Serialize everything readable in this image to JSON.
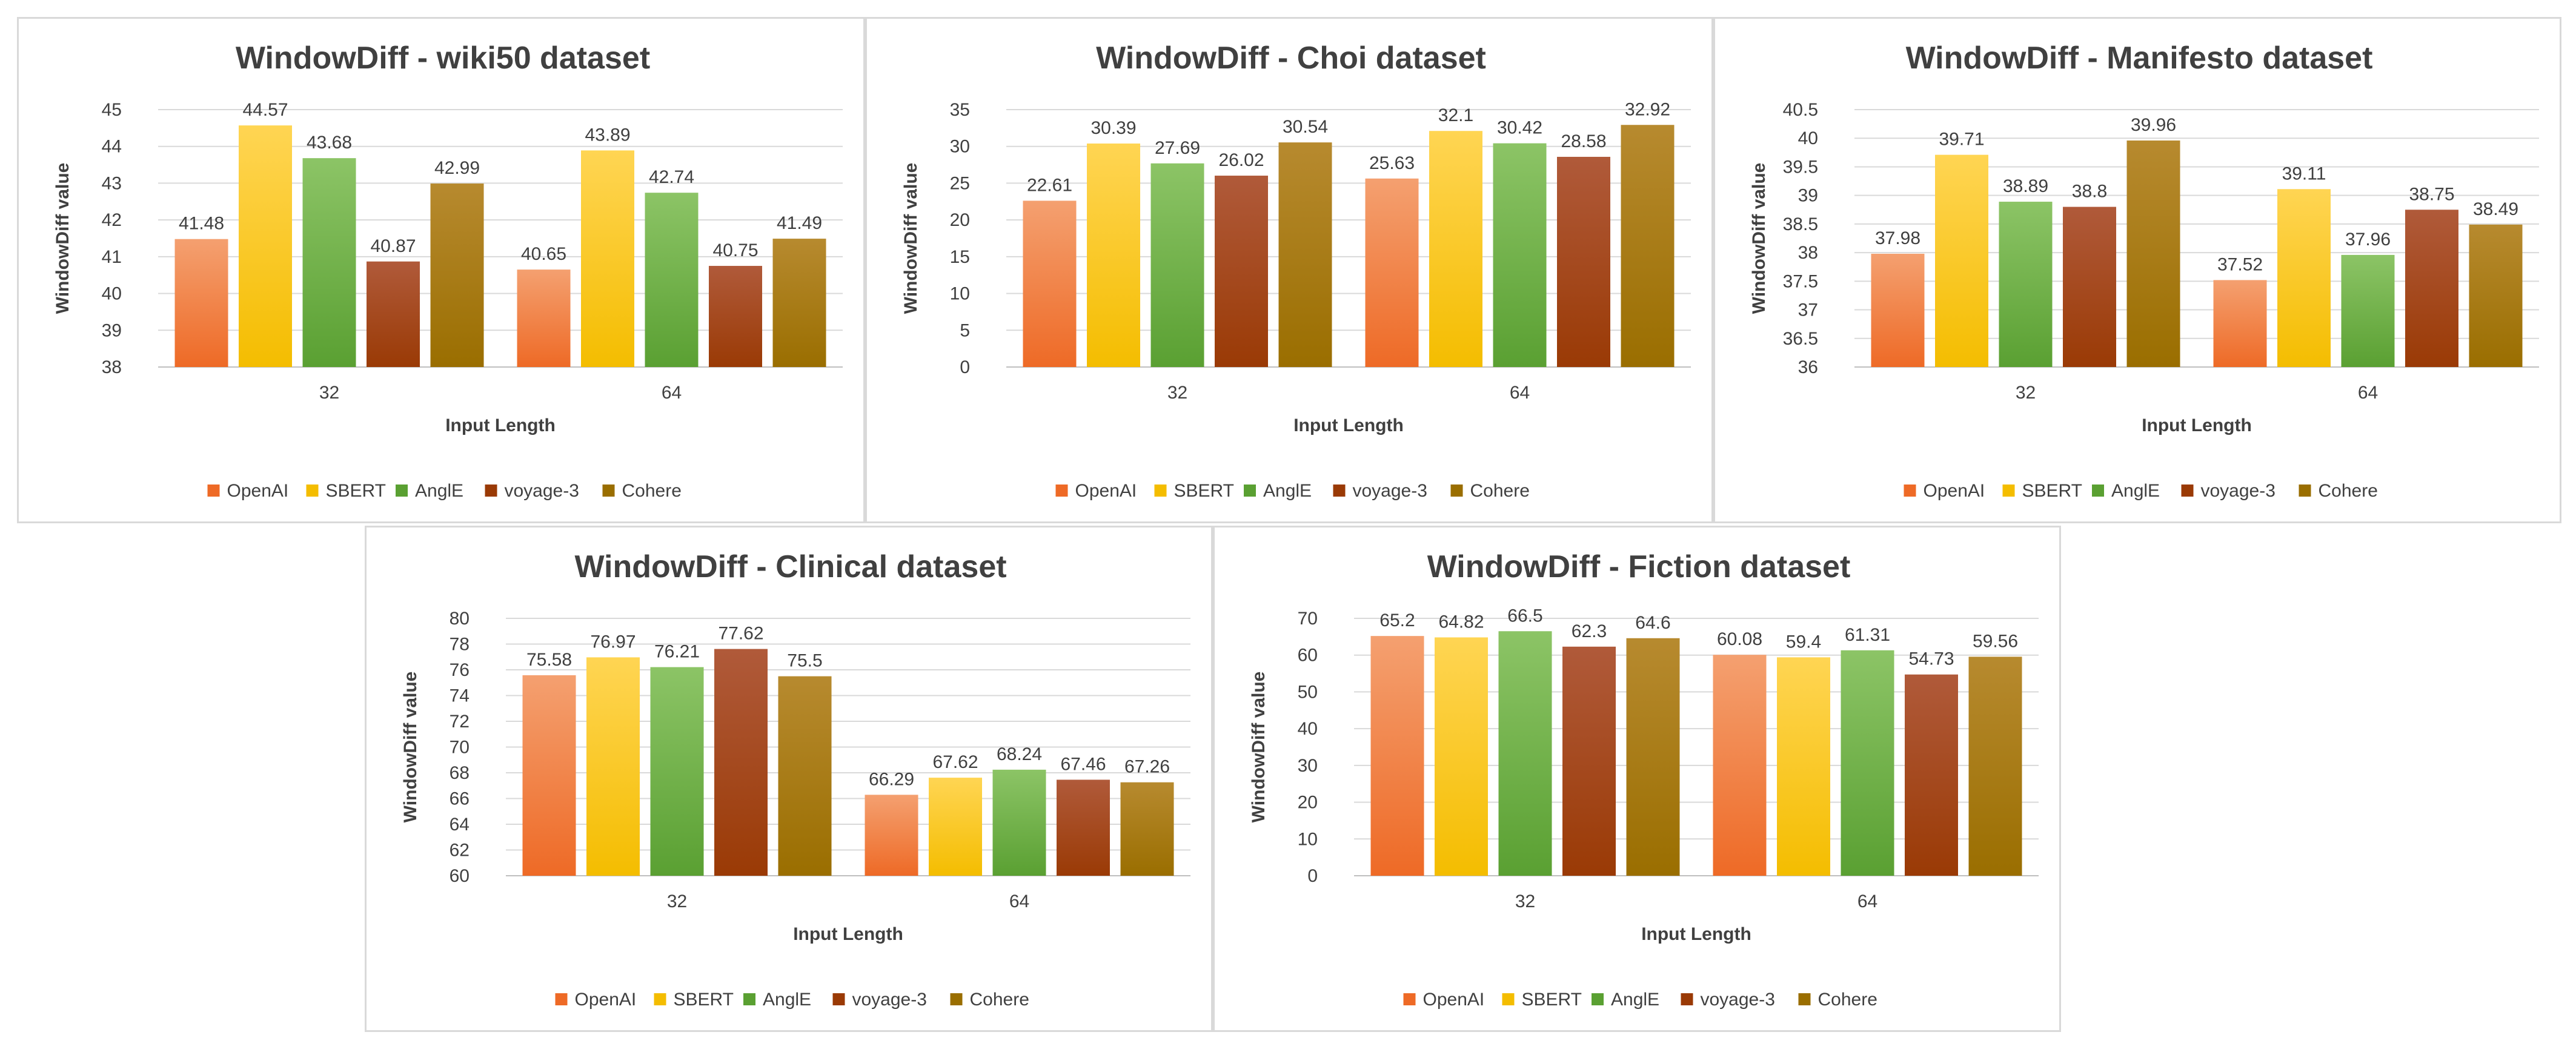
{
  "series_names": [
    "OpenAI",
    "SBERT",
    "AnglE",
    "voyage-3",
    "Cohere"
  ],
  "series_colors": [
    {
      "top": "#f4a070",
      "bottom": "#ee6a26"
    },
    {
      "top": "#ffd553",
      "bottom": "#f4bd00"
    },
    {
      "top": "#8cc466",
      "bottom": "#5aa032"
    },
    {
      "top": "#b05a3a",
      "bottom": "#9a3a05"
    },
    {
      "top": "#b78a2f",
      "bottom": "#9a6e00"
    }
  ],
  "chart_data": [
    {
      "type": "bar",
      "title": "WindowDiff - wiki50 dataset",
      "xlabel": "Input Length",
      "ylabel": "WindowDiff value",
      "categories": [
        "32",
        "64"
      ],
      "ylim": [
        38,
        45
      ],
      "yticks": [
        "38",
        "39",
        "40",
        "41",
        "42",
        "43",
        "44",
        "45"
      ],
      "series": [
        {
          "name": "OpenAI",
          "values": [
            41.48,
            40.65
          ]
        },
        {
          "name": "SBERT",
          "values": [
            44.57,
            43.89
          ]
        },
        {
          "name": "AnglE",
          "values": [
            43.68,
            42.74
          ]
        },
        {
          "name": "voyage-3",
          "values": [
            40.87,
            40.75
          ]
        },
        {
          "name": "Cohere",
          "values": [
            42.99,
            41.49
          ]
        }
      ],
      "legend": "bottom"
    },
    {
      "type": "bar",
      "title": "WindowDiff - Choi dataset",
      "xlabel": "Input Length",
      "ylabel": "WindowDiff value",
      "categories": [
        "32",
        "64"
      ],
      "ylim": [
        0,
        35
      ],
      "yticks": [
        "0",
        "5",
        "10",
        "15",
        "20",
        "25",
        "30",
        "35"
      ],
      "series": [
        {
          "name": "OpenAI",
          "values": [
            22.61,
            25.63
          ]
        },
        {
          "name": "SBERT",
          "values": [
            30.39,
            32.1
          ]
        },
        {
          "name": "AnglE",
          "values": [
            27.69,
            30.42
          ]
        },
        {
          "name": "voyage-3",
          "values": [
            26.02,
            28.58
          ]
        },
        {
          "name": "Cohere",
          "values": [
            30.54,
            32.92
          ]
        }
      ],
      "legend": "bottom"
    },
    {
      "type": "bar",
      "title": "WindowDiff - Manifesto dataset",
      "xlabel": "Input Length",
      "ylabel": "WindowDiff value",
      "categories": [
        "32",
        "64"
      ],
      "ylim": [
        36,
        40.5
      ],
      "yticks": [
        "36",
        "36.5",
        "37",
        "37.5",
        "38",
        "38.5",
        "39",
        "39.5",
        "40",
        "40.5"
      ],
      "series": [
        {
          "name": "OpenAI",
          "values": [
            37.98,
            37.52
          ]
        },
        {
          "name": "SBERT",
          "values": [
            39.71,
            39.11
          ]
        },
        {
          "name": "AnglE",
          "values": [
            38.89,
            37.96
          ]
        },
        {
          "name": "voyage-3",
          "values": [
            38.8,
            38.75
          ]
        },
        {
          "name": "Cohere",
          "values": [
            39.96,
            38.49
          ]
        }
      ],
      "legend": "bottom"
    },
    {
      "type": "bar",
      "title": "WindowDiff - Clinical dataset",
      "xlabel": "Input Length",
      "ylabel": "WindowDiff value",
      "categories": [
        "32",
        "64"
      ],
      "ylim": [
        60,
        80
      ],
      "yticks": [
        "60",
        "62",
        "64",
        "66",
        "68",
        "70",
        "72",
        "74",
        "76",
        "78",
        "80"
      ],
      "series": [
        {
          "name": "OpenAI",
          "values": [
            75.58,
            66.29
          ]
        },
        {
          "name": "SBERT",
          "values": [
            76.97,
            67.62
          ]
        },
        {
          "name": "AnglE",
          "values": [
            76.21,
            68.24
          ]
        },
        {
          "name": "voyage-3",
          "values": [
            77.62,
            67.46
          ]
        },
        {
          "name": "Cohere",
          "values": [
            75.5,
            67.26
          ]
        }
      ],
      "legend": "bottom"
    },
    {
      "type": "bar",
      "title": "WindowDiff - Fiction dataset",
      "xlabel": "Input Length",
      "ylabel": "WindowDiff value",
      "categories": [
        "32",
        "64"
      ],
      "ylim": [
        0,
        70
      ],
      "yticks": [
        "0",
        "10",
        "20",
        "30",
        "40",
        "50",
        "60",
        "70"
      ],
      "series": [
        {
          "name": "OpenAI",
          "values": [
            65.2,
            60.08
          ]
        },
        {
          "name": "SBERT",
          "values": [
            64.82,
            59.4
          ]
        },
        {
          "name": "AnglE",
          "values": [
            66.5,
            61.31
          ]
        },
        {
          "name": "voyage-3",
          "values": [
            62.3,
            54.73
          ]
        },
        {
          "name": "Cohere",
          "values": [
            64.6,
            59.56
          ]
        }
      ],
      "legend": "bottom"
    }
  ]
}
